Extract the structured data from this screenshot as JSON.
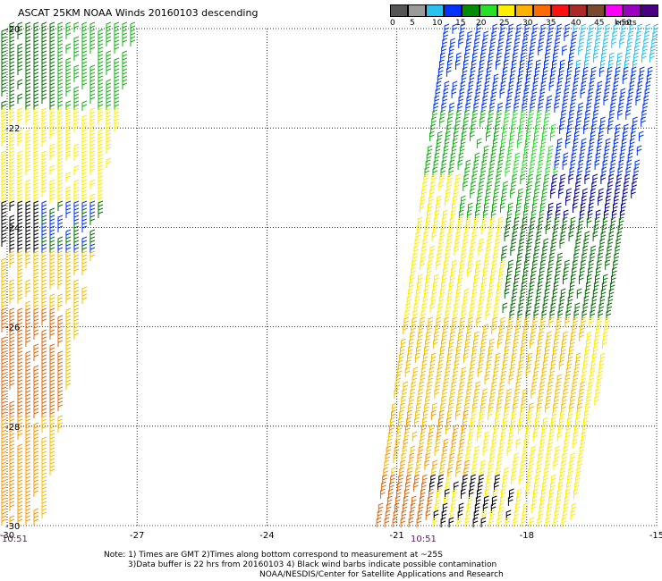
{
  "title": "ASCAT 25KM NOAA Winds 20160103 descending",
  "legend": {
    "colors": [
      "#555555",
      "#9b9b9b",
      "#29c2f0",
      "#0032ff",
      "#008c00",
      "#28e028",
      "#ffee00",
      "#ffb000",
      "#ff6a00",
      "#ff1010",
      "#aa2a2a",
      "#7a4a2a",
      "#ff00ff",
      "#9a00c0",
      "#4b0082"
    ],
    "labels": [
      "0",
      "5",
      "10",
      "15",
      "20",
      "25",
      "30",
      "35",
      "40",
      "45",
      ">50"
    ],
    "unit": "knots"
  },
  "axes": {
    "lat_ticks": [
      "-20",
      "-22",
      "-24",
      "-26",
      "-28",
      "-30"
    ],
    "lon_ticks": [
      "-30",
      "-27",
      "-24",
      "-21",
      "-18",
      "-15"
    ]
  },
  "swath_times": [
    "10:51",
    "10:51"
  ],
  "notes": {
    "line1": "Note: 1) Times are GMT 2)Times along bottom correspond to measurement at ~25S",
    "line2": "3)Data buffer is 22 hrs from 20160103 4) Black wind barbs indicate possible contamination",
    "line3": "NOAA/NESDIS/Center for Satellite Applications and Research"
  }
}
